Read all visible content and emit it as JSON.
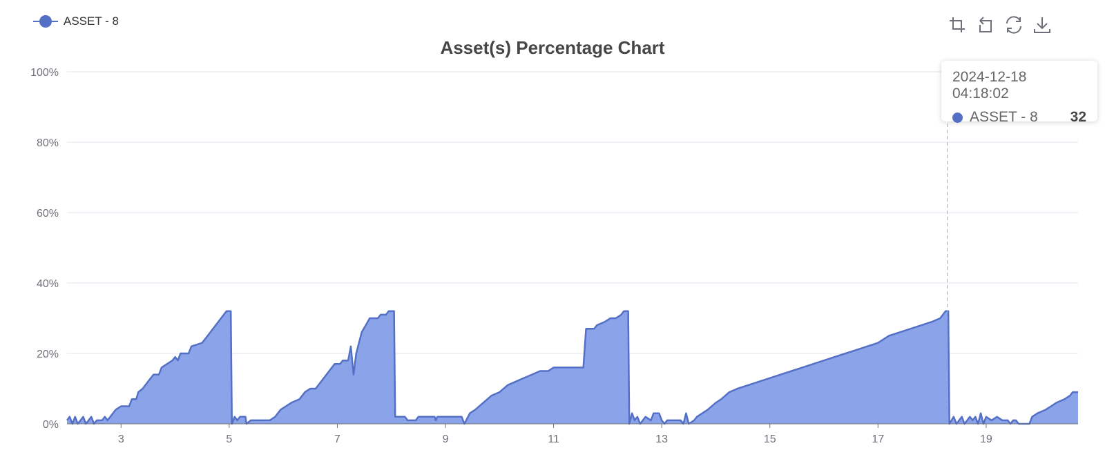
{
  "chart_data": {
    "type": "area",
    "title": "Asset(s) Percentage Chart",
    "legend": {
      "position": "top-left",
      "items": [
        "ASSET - 8"
      ]
    },
    "xlim": [
      2,
      20.7
    ],
    "x_ticks": [
      3,
      5,
      7,
      9,
      11,
      13,
      15,
      17,
      19
    ],
    "ylim": [
      0,
      100
    ],
    "y_ticks": [
      "0%",
      "20%",
      "40%",
      "60%",
      "80%",
      "100%"
    ],
    "y_tick_values": [
      0,
      20,
      40,
      60,
      80,
      100
    ],
    "grid": true,
    "colors": {
      "series": "#5470c6",
      "fill": "#8ba3e8",
      "grid": "#e0e6f1",
      "axis": "#6e7079"
    },
    "series": [
      {
        "name": "ASSET - 8",
        "points": [
          [
            2.0,
            1
          ],
          [
            2.05,
            2
          ],
          [
            2.1,
            0
          ],
          [
            2.15,
            2
          ],
          [
            2.2,
            0
          ],
          [
            2.3,
            2
          ],
          [
            2.35,
            0
          ],
          [
            2.45,
            2
          ],
          [
            2.5,
            0
          ],
          [
            2.55,
            1
          ],
          [
            2.65,
            1
          ],
          [
            2.7,
            2
          ],
          [
            2.75,
            1
          ],
          [
            2.9,
            4
          ],
          [
            3.0,
            5
          ],
          [
            3.15,
            5
          ],
          [
            3.2,
            7
          ],
          [
            3.28,
            7
          ],
          [
            3.32,
            9
          ],
          [
            3.4,
            10
          ],
          [
            3.5,
            12
          ],
          [
            3.6,
            14
          ],
          [
            3.7,
            14
          ],
          [
            3.75,
            16
          ],
          [
            3.85,
            17
          ],
          [
            3.95,
            18
          ],
          [
            4.0,
            19
          ],
          [
            4.05,
            18
          ],
          [
            4.1,
            20
          ],
          [
            4.25,
            20
          ],
          [
            4.3,
            22
          ],
          [
            4.5,
            23
          ],
          [
            4.6,
            25
          ],
          [
            4.7,
            27
          ],
          [
            4.8,
            29
          ],
          [
            4.9,
            31
          ],
          [
            4.95,
            32
          ],
          [
            5.0,
            32
          ],
          [
            5.03,
            32
          ],
          [
            5.05,
            0
          ],
          [
            5.1,
            2
          ],
          [
            5.15,
            1
          ],
          [
            5.2,
            2
          ],
          [
            5.3,
            2
          ],
          [
            5.32,
            0
          ],
          [
            5.4,
            1
          ],
          [
            5.75,
            1
          ],
          [
            5.85,
            2
          ],
          [
            5.95,
            4
          ],
          [
            6.05,
            5
          ],
          [
            6.15,
            6
          ],
          [
            6.3,
            7
          ],
          [
            6.4,
            9
          ],
          [
            6.5,
            10
          ],
          [
            6.6,
            10
          ],
          [
            6.75,
            13
          ],
          [
            6.95,
            17
          ],
          [
            7.05,
            17
          ],
          [
            7.1,
            18
          ],
          [
            7.2,
            18
          ],
          [
            7.25,
            22
          ],
          [
            7.3,
            14
          ],
          [
            7.35,
            20
          ],
          [
            7.45,
            26
          ],
          [
            7.6,
            30
          ],
          [
            7.75,
            30
          ],
          [
            7.8,
            31
          ],
          [
            7.9,
            31
          ],
          [
            7.95,
            32
          ],
          [
            8.0,
            32
          ],
          [
            8.05,
            32
          ],
          [
            8.07,
            2
          ],
          [
            8.25,
            2
          ],
          [
            8.3,
            1
          ],
          [
            8.45,
            1
          ],
          [
            8.5,
            2
          ],
          [
            8.8,
            2
          ],
          [
            8.82,
            1
          ],
          [
            8.85,
            2
          ],
          [
            9.3,
            2
          ],
          [
            9.35,
            0
          ],
          [
            9.45,
            3
          ],
          [
            9.55,
            4
          ],
          [
            9.7,
            6
          ],
          [
            9.85,
            8
          ],
          [
            10.0,
            9
          ],
          [
            10.15,
            11
          ],
          [
            10.3,
            12
          ],
          [
            10.45,
            13
          ],
          [
            10.6,
            14
          ],
          [
            10.75,
            15
          ],
          [
            10.9,
            15
          ],
          [
            11.0,
            16
          ],
          [
            11.2,
            16
          ],
          [
            11.55,
            16
          ],
          [
            11.6,
            27
          ],
          [
            11.75,
            27
          ],
          [
            11.8,
            28
          ],
          [
            11.95,
            29
          ],
          [
            12.05,
            30
          ],
          [
            12.15,
            30
          ],
          [
            12.25,
            31
          ],
          [
            12.3,
            32
          ],
          [
            12.35,
            32
          ],
          [
            12.38,
            32
          ],
          [
            12.4,
            0
          ],
          [
            12.45,
            3
          ],
          [
            12.5,
            1
          ],
          [
            12.55,
            2
          ],
          [
            12.6,
            0
          ],
          [
            12.7,
            2
          ],
          [
            12.8,
            1
          ],
          [
            12.85,
            3
          ],
          [
            12.95,
            3
          ],
          [
            13.0,
            1
          ],
          [
            13.05,
            0
          ],
          [
            13.1,
            1
          ],
          [
            13.35,
            1
          ],
          [
            13.4,
            0
          ],
          [
            13.45,
            3
          ],
          [
            13.5,
            0
          ],
          [
            13.6,
            1
          ],
          [
            13.65,
            2
          ],
          [
            13.75,
            3
          ],
          [
            13.85,
            4
          ],
          [
            14.0,
            6
          ],
          [
            14.1,
            7
          ],
          [
            14.25,
            9
          ],
          [
            14.4,
            10
          ],
          [
            14.6,
            11
          ],
          [
            14.8,
            12
          ],
          [
            15.0,
            13
          ],
          [
            15.2,
            14
          ],
          [
            15.4,
            15
          ],
          [
            15.6,
            16
          ],
          [
            15.8,
            17
          ],
          [
            16.0,
            18
          ],
          [
            16.2,
            19
          ],
          [
            16.4,
            20
          ],
          [
            16.6,
            21
          ],
          [
            16.8,
            22
          ],
          [
            17.0,
            23
          ],
          [
            17.2,
            25
          ],
          [
            17.4,
            26
          ],
          [
            17.6,
            27
          ],
          [
            17.8,
            28
          ],
          [
            18.0,
            29
          ],
          [
            18.15,
            30
          ],
          [
            18.2,
            31
          ],
          [
            18.25,
            32
          ],
          [
            18.3,
            32
          ],
          [
            18.32,
            0
          ],
          [
            18.4,
            2
          ],
          [
            18.45,
            0
          ],
          [
            18.55,
            2
          ],
          [
            18.6,
            0
          ],
          [
            18.7,
            2
          ],
          [
            18.75,
            1
          ],
          [
            18.8,
            2
          ],
          [
            18.85,
            0
          ],
          [
            18.9,
            3
          ],
          [
            18.95,
            0
          ],
          [
            19.0,
            2
          ],
          [
            19.1,
            1
          ],
          [
            19.2,
            2
          ],
          [
            19.3,
            1
          ],
          [
            19.4,
            1
          ],
          [
            19.45,
            0
          ],
          [
            19.5,
            1
          ],
          [
            19.55,
            1
          ],
          [
            19.6,
            0
          ],
          [
            19.8,
            0
          ],
          [
            19.85,
            2
          ],
          [
            19.95,
            3
          ],
          [
            20.1,
            4
          ],
          [
            20.2,
            5
          ],
          [
            20.3,
            6
          ],
          [
            20.45,
            7
          ],
          [
            20.55,
            8
          ],
          [
            20.6,
            9
          ],
          [
            20.7,
            9
          ]
        ]
      }
    ],
    "hover_x": 18.28
  },
  "tooltip": {
    "time": "2024-12-18 04:18:02",
    "series_name": "ASSET - 8",
    "value": "32"
  },
  "toolbox": {
    "items": [
      "zoom-icon",
      "zoom-reset-icon",
      "restore-icon",
      "download-icon"
    ]
  }
}
